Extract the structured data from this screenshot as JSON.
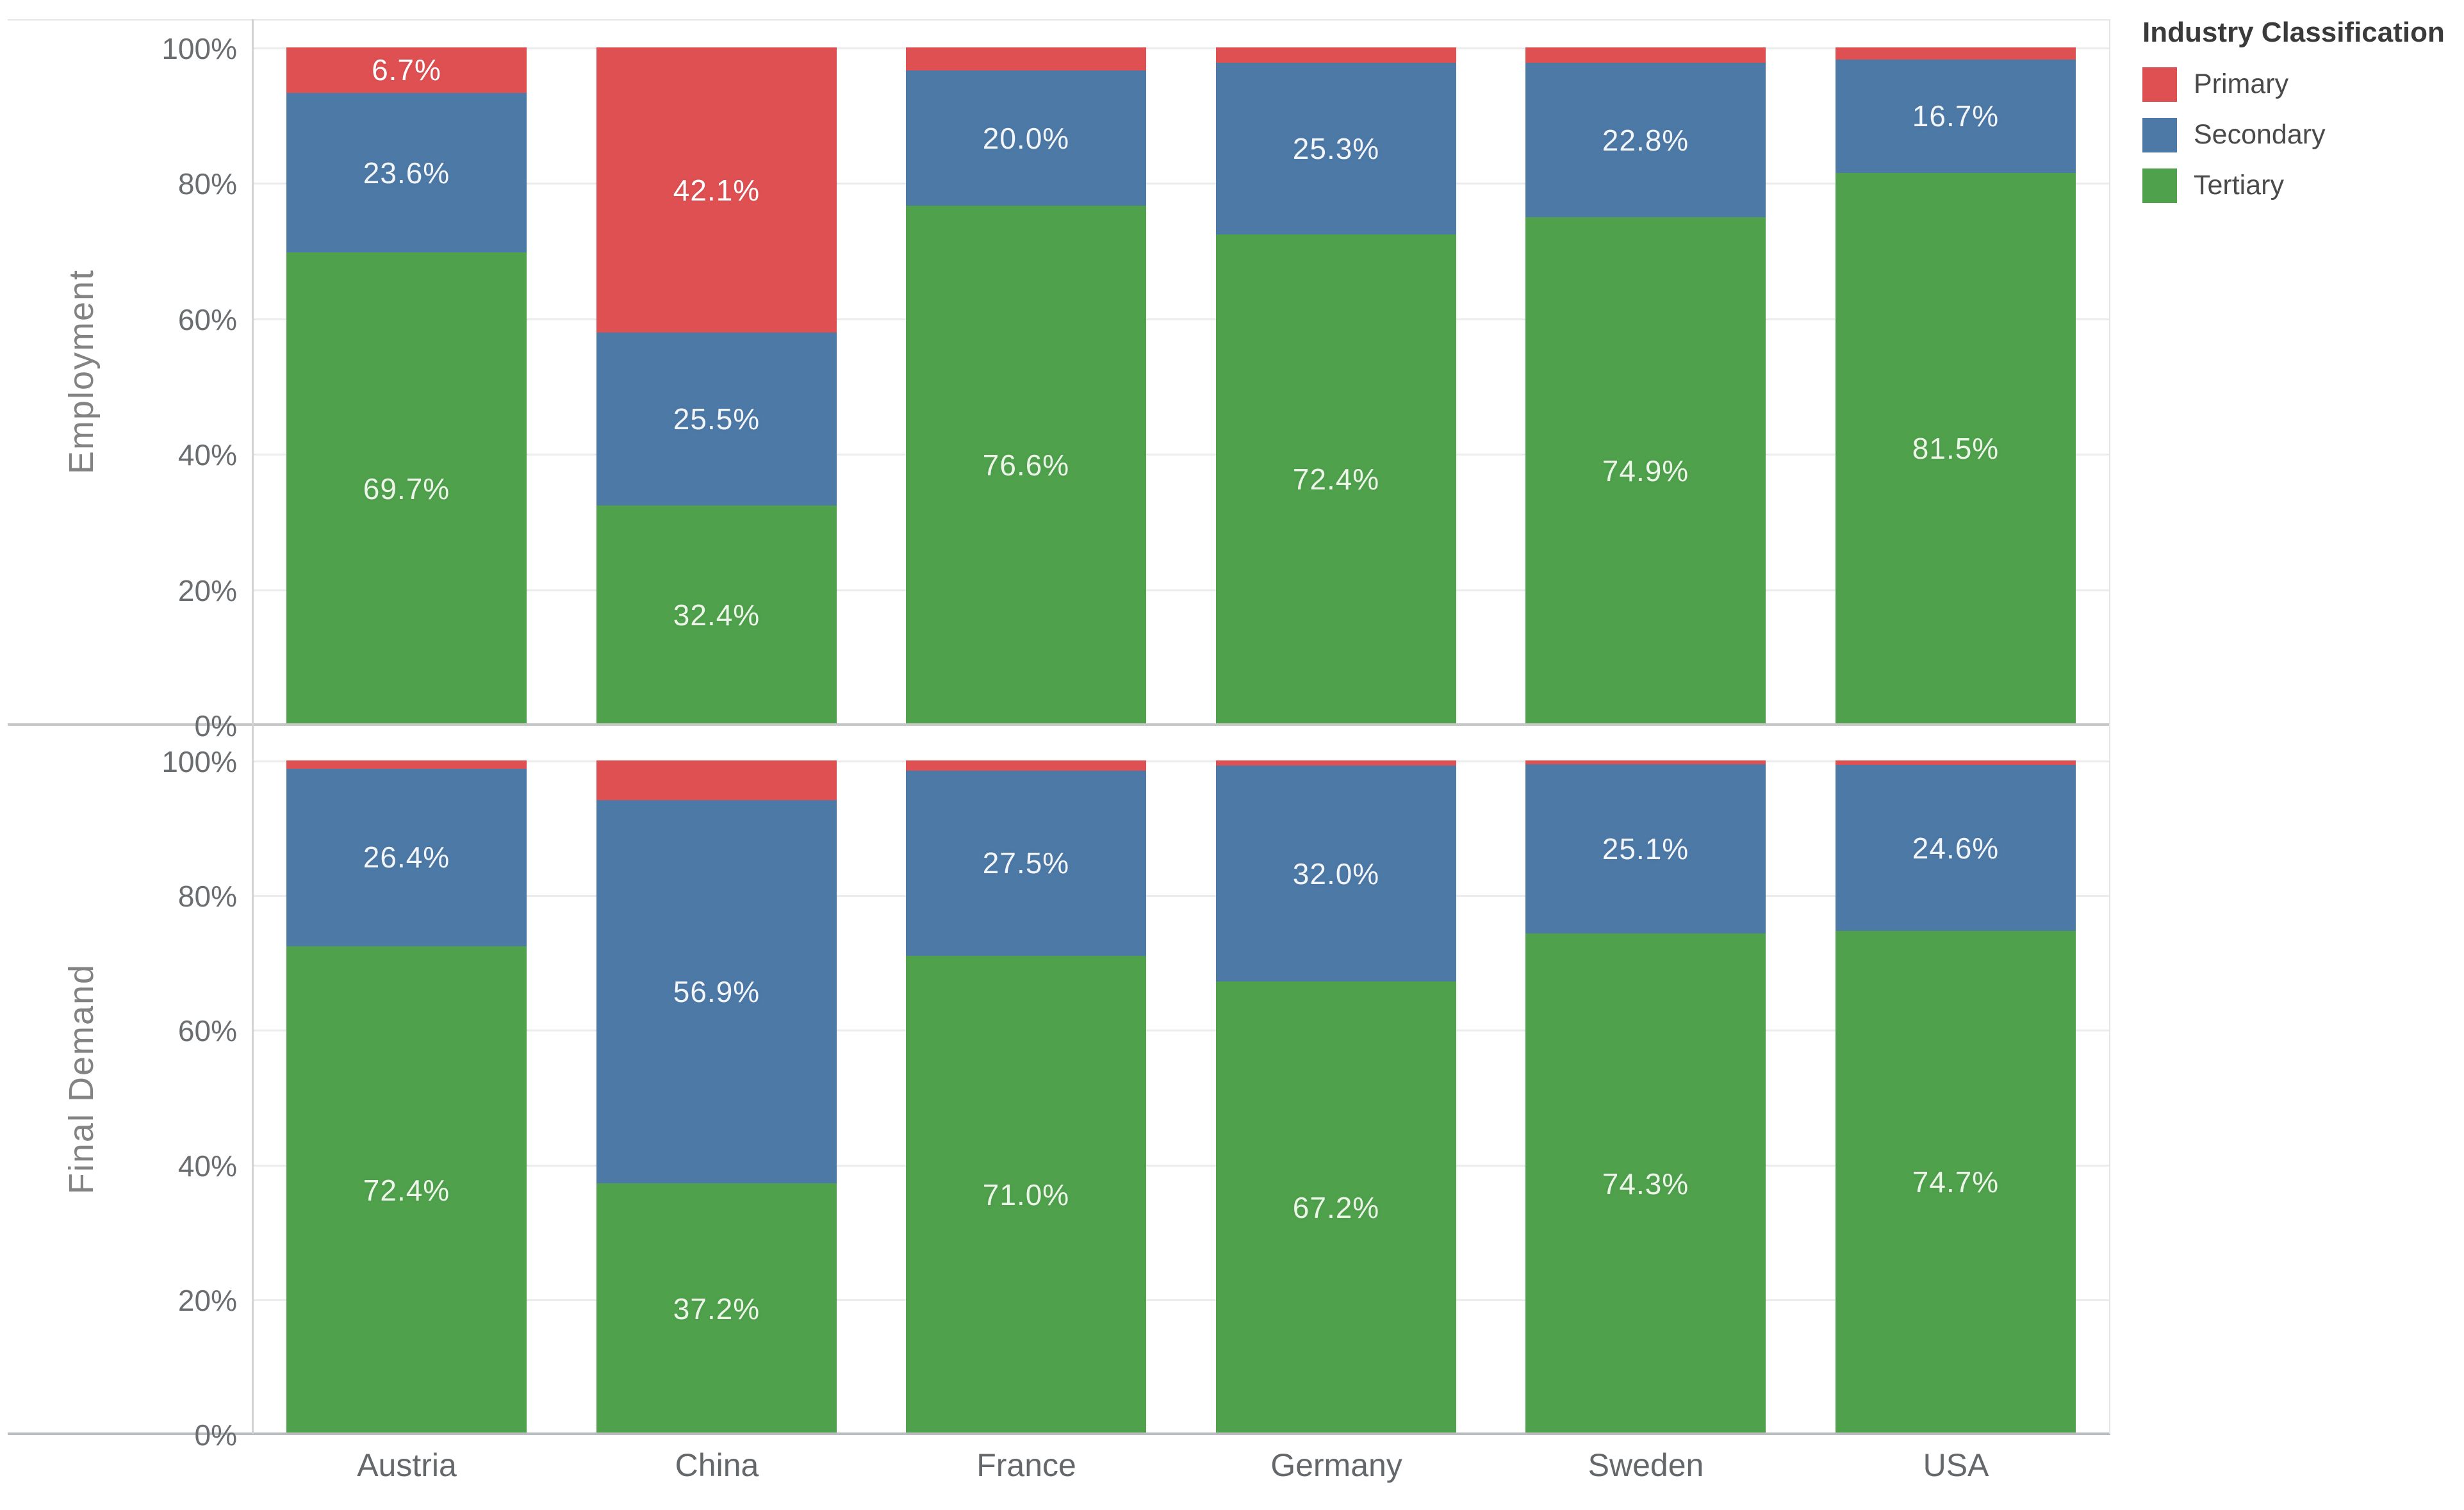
{
  "legend": {
    "title": "Industry Classification",
    "items": [
      {
        "label": "Primary",
        "color": "#df5052"
      },
      {
        "label": "Secondary",
        "color": "#4d79a7"
      },
      {
        "label": "Tertiary",
        "color": "#4fa14c"
      }
    ]
  },
  "axes": {
    "y_ticks": [
      "100%",
      "80%",
      "60%",
      "40%",
      "20%",
      "0%"
    ],
    "categories": [
      "Austria",
      "China",
      "France",
      "Germany",
      "Sweden",
      "USA"
    ]
  },
  "chart_data": {
    "type": "bar",
    "stacked": true,
    "normalized_percent": true,
    "orientation": "vertical",
    "grid": "horizontal-light",
    "legend_position": "top-right",
    "ylim": [
      0,
      100
    ],
    "y_tick_values": [
      100,
      80,
      60,
      40,
      20,
      0
    ],
    "categories": [
      "Austria",
      "China",
      "France",
      "Germany",
      "Sweden",
      "USA"
    ],
    "rows": [
      {
        "row_label": "Employment",
        "series": [
          {
            "name": "Primary",
            "color": "#df5052",
            "values": [
              6.7,
              42.1,
              3.4,
              2.3,
              2.3,
              1.8
            ],
            "labels": [
              "6.7%",
              "42.1%",
              null,
              null,
              null,
              null
            ]
          },
          {
            "name": "Secondary",
            "color": "#4d79a7",
            "values": [
              23.6,
              25.5,
              20.0,
              25.3,
              22.8,
              16.7
            ],
            "labels": [
              "23.6%",
              "25.5%",
              "20.0%",
              "25.3%",
              "22.8%",
              "16.7%"
            ]
          },
          {
            "name": "Tertiary",
            "color": "#4fa14c",
            "values": [
              69.7,
              32.4,
              76.6,
              72.4,
              74.9,
              81.5
            ],
            "labels": [
              "69.7%",
              "32.4%",
              "76.6%",
              "72.4%",
              "74.9%",
              "81.5%"
            ]
          }
        ]
      },
      {
        "row_label": "Final Demand",
        "series": [
          {
            "name": "Primary",
            "color": "#df5052",
            "values": [
              1.2,
              5.9,
              1.5,
              0.8,
              0.6,
              0.7
            ],
            "labels": [
              null,
              null,
              null,
              null,
              null,
              null
            ]
          },
          {
            "name": "Secondary",
            "color": "#4d79a7",
            "values": [
              26.4,
              56.9,
              27.5,
              32.0,
              25.1,
              24.6
            ],
            "labels": [
              "26.4%",
              "56.9%",
              "27.5%",
              "32.0%",
              "25.1%",
              "24.6%"
            ]
          },
          {
            "name": "Tertiary",
            "color": "#4fa14c",
            "values": [
              72.4,
              37.2,
              71.0,
              67.2,
              74.3,
              74.7
            ],
            "labels": [
              "72.4%",
              "37.2%",
              "71.0%",
              "67.2%",
              "74.3%",
              "74.7%"
            ]
          }
        ]
      }
    ],
    "label_text_colors": {
      "Primary": "#ffffff",
      "Secondary": "#f2f5f9",
      "Tertiary": "#ecf5e7"
    }
  }
}
